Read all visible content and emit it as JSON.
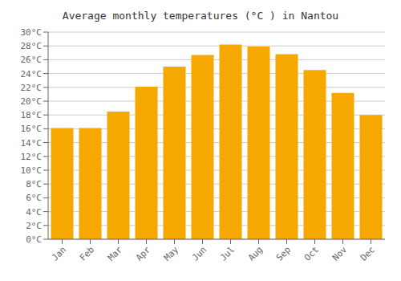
{
  "chart_data": {
    "type": "bar",
    "title": "Average monthly temperatures (°C ) in Nantou",
    "categories": [
      "Jan",
      "Feb",
      "Mar",
      "Apr",
      "May",
      "Jun",
      "Jul",
      "Aug",
      "Sep",
      "Oct",
      "Nov",
      "Dec"
    ],
    "values": [
      16.1,
      16.1,
      18.5,
      22.1,
      25.0,
      26.7,
      28.2,
      27.9,
      26.8,
      24.5,
      21.2,
      18.0
    ],
    "color": "#F5A800",
    "ylim": [
      0,
      30
    ],
    "yticks": [
      {
        "value": 0,
        "label": "0°C"
      },
      {
        "value": 2,
        "label": "2°C"
      },
      {
        "value": 4,
        "label": "4°C"
      },
      {
        "value": 6,
        "label": "6°C"
      },
      {
        "value": 8,
        "label": "8°C"
      },
      {
        "value": 10,
        "label": "10°C"
      },
      {
        "value": 12,
        "label": "12°C"
      },
      {
        "value": 14,
        "label": "14°C"
      },
      {
        "value": 16,
        "label": "16°C"
      },
      {
        "value": 18,
        "label": "18°C"
      },
      {
        "value": 20,
        "label": "20°C"
      },
      {
        "value": 22,
        "label": "22°C"
      },
      {
        "value": 24,
        "label": "24°C"
      },
      {
        "value": 26,
        "label": "26°C"
      },
      {
        "value": 28,
        "label": "28°C"
      },
      {
        "value": 30,
        "label": "30°C"
      }
    ],
    "grid": true
  }
}
